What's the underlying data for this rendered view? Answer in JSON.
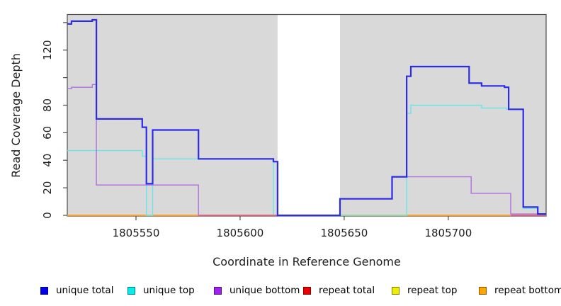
{
  "chart_data": {
    "type": "line",
    "subtype": "step-coverage",
    "title": "",
    "xlabel": "Coordinate in Reference Genome",
    "ylabel": "Read Coverage Depth",
    "xlim": [
      1805517,
      1805747
    ],
    "ylim": [
      0,
      146
    ],
    "grid": false,
    "plot_background": "#D9D9D9",
    "figure_background": "#FFFFFF",
    "axis_color": "#4D4D4D",
    "repeat_region_mask": {
      "from": 1805618,
      "to": 1805648,
      "color": "#FFFFFF"
    },
    "x_ticks": {
      "values": [
        1805550,
        1805600,
        1805650,
        1805700
      ],
      "labels": [
        "1805550",
        "1805600",
        "1805650",
        "1805700"
      ]
    },
    "y_ticks": {
      "values": [
        0,
        20,
        40,
        60,
        80,
        100,
        120,
        140
      ],
      "labels": [
        "0",
        "20",
        "40",
        "60",
        "80",
        "",
        "120",
        ""
      ]
    },
    "series": [
      {
        "name": "unique total",
        "color": "#2B2BE8",
        "width": 2.2,
        "points": [
          [
            1805517,
            139
          ],
          [
            1805519,
            141
          ],
          [
            1805529,
            142
          ],
          [
            1805531,
            70
          ],
          [
            1805553,
            64
          ],
          [
            1805555,
            23
          ],
          [
            1805558,
            62
          ],
          [
            1805580,
            41
          ],
          [
            1805616,
            39
          ],
          [
            1805618,
            0
          ],
          [
            1805648,
            12
          ],
          [
            1805673,
            28
          ],
          [
            1805680,
            101
          ],
          [
            1805682,
            108
          ],
          [
            1805710,
            96
          ],
          [
            1805716,
            94
          ],
          [
            1805727,
            93
          ],
          [
            1805729,
            77
          ],
          [
            1805736,
            6
          ],
          [
            1805743,
            1
          ],
          [
            1805747,
            1
          ]
        ]
      },
      {
        "name": "unique top",
        "color": "#6AE6E6",
        "width": 1.4,
        "points": [
          [
            1805517,
            47
          ],
          [
            1805553,
            43
          ],
          [
            1805555,
            0
          ],
          [
            1805558,
            41
          ],
          [
            1805616,
            0
          ],
          [
            1805680,
            74
          ],
          [
            1805682,
            80
          ],
          [
            1805716,
            78
          ],
          [
            1805728,
            77
          ],
          [
            1805736,
            5
          ],
          [
            1805743,
            0
          ],
          [
            1805747,
            0
          ]
        ]
      },
      {
        "name": "unique bottom",
        "color": "#B06FE0",
        "width": 1.4,
        "points": [
          [
            1805517,
            92
          ],
          [
            1805519,
            93
          ],
          [
            1805529,
            95
          ],
          [
            1805531,
            22
          ],
          [
            1805580,
            0
          ],
          [
            1805648,
            12
          ],
          [
            1805673,
            28
          ],
          [
            1805711,
            16
          ],
          [
            1805730,
            1
          ],
          [
            1805747,
            1
          ]
        ]
      },
      {
        "name": "repeat total",
        "color": "#E25568",
        "width": 1.6,
        "points": [
          [
            1805517,
            0
          ],
          [
            1805747,
            0
          ]
        ]
      },
      {
        "name": "repeat top",
        "color": "#F0F000",
        "width": 1.6,
        "points": [
          [
            1805517,
            0
          ],
          [
            1805747,
            0
          ]
        ]
      },
      {
        "name": "repeat bottom",
        "color": "#FFA11F",
        "width": 2.0,
        "points": [
          [
            1805517,
            0
          ],
          [
            1805747,
            0
          ]
        ]
      }
    ],
    "draw_order": [
      3,
      4,
      5,
      1,
      2,
      0
    ],
    "baseline_overlays": [
      {
        "from": 1805580,
        "to": 1805618,
        "color": "#E2607E"
      },
      {
        "from": 1805648,
        "to": 1805680,
        "color": "#93D6A0"
      },
      {
        "from": 1805730,
        "to": 1805747,
        "color": "#E2607E"
      }
    ],
    "legend": {
      "position": "bottom",
      "items": [
        {
          "label": "unique total",
          "color": "#0000EE"
        },
        {
          "label": "unique top",
          "color": "#00EEEE"
        },
        {
          "label": "unique bottom",
          "color": "#A020F0"
        },
        {
          "label": "repeat total",
          "color": "#EE0000"
        },
        {
          "label": "repeat top",
          "color": "#EEEE00"
        },
        {
          "label": "repeat bottom",
          "color": "#FFA500"
        }
      ]
    }
  }
}
